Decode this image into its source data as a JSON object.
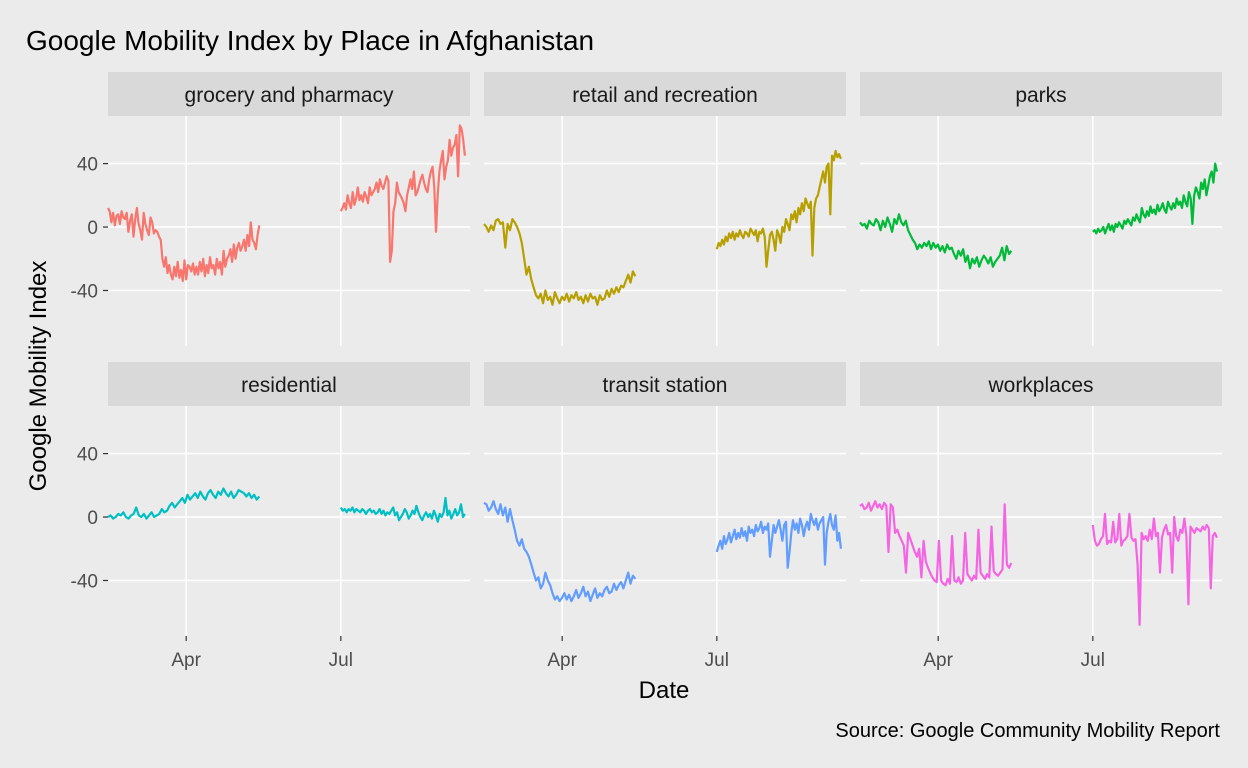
{
  "chart_data": {
    "type": "line",
    "title": "Google Mobility Index by Place in Afghanistan",
    "xlabel": "Date",
    "ylabel": "Google Mobility Index",
    "caption": "Source: Google Community Mobility Report",
    "x_ticks": [
      {
        "date": "2020-04-01",
        "label": "Apr"
      },
      {
        "date": "2020-07-01",
        "label": "Jul"
      }
    ],
    "y_ticks": [
      {
        "value": -40,
        "label": "-40"
      },
      {
        "value": 0,
        "label": "0"
      },
      {
        "value": 40,
        "label": "40"
      }
    ],
    "xlim": [
      "2020-02-15",
      "2020-09-15"
    ],
    "ylim": [
      -75,
      70
    ],
    "grid": true,
    "legend": "none",
    "date_ranges": [
      {
        "start": "2020-02-15",
        "end": "2020-05-14"
      },
      {
        "start": "2020-07-01",
        "end": "2020-09-12"
      }
    ],
    "panels": [
      {
        "title": "grocery and pharmacy",
        "color": "#F8766D",
        "segments": [
          [
            12,
            10,
            3,
            9,
            1,
            7,
            8,
            2,
            10,
            6,
            5,
            9,
            -3,
            4,
            8,
            -6,
            5,
            12,
            2,
            -2,
            -8,
            9,
            2,
            -2,
            -5,
            6,
            3,
            -4,
            -2,
            -3,
            -6,
            -8,
            -20,
            -25,
            -19,
            -29,
            -24,
            -30,
            -33,
            -25,
            -31,
            -22,
            -32,
            -27,
            -34,
            -21,
            -33,
            -24,
            -25,
            -28,
            -23,
            -30,
            -25,
            -30,
            -22,
            -28,
            -20,
            -31,
            -24,
            -29,
            -19,
            -26,
            -24,
            -30,
            -20,
            -26,
            -22,
            -30,
            -15,
            -25,
            -20,
            -18,
            -14,
            -22,
            -11,
            -20,
            -13,
            -10,
            -15,
            -12,
            -8,
            -15,
            -5,
            -12,
            3,
            -8,
            -10,
            -14,
            -5,
            1
          ],
          [
            10,
            12,
            15,
            11,
            20,
            15,
            12,
            22,
            14,
            18,
            25,
            17,
            20,
            16,
            22,
            19,
            15,
            25,
            20,
            22,
            24,
            28,
            22,
            30,
            26,
            24,
            28,
            32,
            29,
            -22,
            -15,
            10,
            15,
            28,
            22,
            20,
            18,
            15,
            10,
            20,
            25,
            30,
            24,
            35,
            20,
            22,
            26,
            30,
            33,
            28,
            24,
            22,
            30,
            35,
            38,
            25,
            -3,
            20,
            35,
            42,
            48,
            30,
            38,
            42,
            55,
            45,
            50,
            52,
            58,
            32,
            64,
            62,
            55,
            45
          ]
        ]
      },
      {
        "title": "retail and recreation",
        "color": "#B79F00",
        "segments": [
          [
            2,
            0,
            -3,
            1,
            -2,
            4,
            5,
            2,
            3,
            -13,
            2,
            -2,
            5,
            3,
            0,
            -4,
            -10,
            -20,
            -30,
            -25,
            -33,
            -38,
            -43,
            -45,
            -42,
            -48,
            -40,
            -46,
            -44,
            -49,
            -41,
            -45,
            -48,
            -44,
            -46,
            -42,
            -47,
            -43,
            -45,
            -41,
            -46,
            -44,
            -48,
            -43,
            -47,
            -42,
            -45,
            -44,
            -49,
            -43,
            -46,
            -45,
            -40,
            -44,
            -39,
            -42,
            -38,
            -41,
            -37,
            -38,
            -34,
            -30,
            -35,
            -28,
            -31
          ],
          [
            -14,
            -10,
            -12,
            -8,
            -11,
            -6,
            -9,
            -4,
            -7,
            -3,
            -8,
            -4,
            -6,
            -2,
            -5,
            -7,
            -3,
            -4,
            -6,
            -1,
            -3,
            -5,
            -2,
            -9,
            -3,
            -4,
            -1,
            -6,
            -25,
            -15,
            -5,
            -3,
            -8,
            -15,
            -2,
            -5,
            -10,
            0,
            -3,
            5,
            2,
            -2,
            8,
            5,
            10,
            3,
            12,
            8,
            15,
            10,
            18,
            15,
            12,
            16,
            -18,
            12,
            18,
            20,
            25,
            30,
            35,
            28,
            38,
            40,
            8,
            45,
            42,
            48,
            44,
            46,
            43
          ]
        ]
      },
      {
        "title": "parks",
        "color": "#00BA38",
        "segments": [
          [
            3,
            1,
            2,
            -1,
            4,
            2,
            1,
            5,
            3,
            -2,
            4,
            0,
            6,
            2,
            -3,
            5,
            2,
            8,
            3,
            1,
            4,
            -2,
            -5,
            -8,
            -10,
            -14,
            -11,
            -13,
            -10,
            -12,
            -9,
            -14,
            -10,
            -13,
            -11,
            -15,
            -12,
            -16,
            -11,
            -14,
            -13,
            -17,
            -20,
            -15,
            -18,
            -14,
            -22,
            -18,
            -26,
            -20,
            -23,
            -19,
            -25,
            -21,
            -18,
            -20,
            -23,
            -19,
            -25,
            -22,
            -20,
            -18,
            -13,
            -21,
            -12,
            -17,
            -15
          ],
          [
            -3,
            -2,
            -4,
            -1,
            -3,
            -2,
            0,
            -4,
            -1,
            2,
            -2,
            1,
            -3,
            2,
            0,
            3,
            1,
            -1,
            4,
            2,
            5,
            3,
            1,
            6,
            4,
            8,
            5,
            3,
            12,
            8,
            6,
            10,
            7,
            13,
            9,
            11,
            8,
            14,
            10,
            12,
            15,
            11,
            9,
            16,
            13,
            11,
            15,
            12,
            18,
            14,
            16,
            12,
            20,
            16,
            13,
            22,
            18,
            2,
            20,
            25,
            22,
            18,
            28,
            24,
            30,
            20,
            26,
            32,
            35,
            28,
            40,
            35
          ]
        ]
      },
      {
        "title": "residential",
        "color": "#00BFC4",
        "segments": [
          [
            0,
            1,
            -1,
            0,
            2,
            1,
            3,
            0,
            -1,
            1,
            2,
            6,
            1,
            0,
            2,
            -1,
            1,
            3,
            0,
            1,
            2,
            5,
            3,
            4,
            7,
            9,
            6,
            8,
            10,
            12,
            9,
            14,
            11,
            13,
            15,
            12,
            16,
            13,
            11,
            15,
            17,
            14,
            12,
            16,
            14,
            18,
            15,
            13,
            16,
            12,
            14,
            17,
            16,
            15,
            13,
            15,
            12,
            14,
            11,
            13
          ],
          [
            6,
            4,
            5,
            3,
            5,
            4,
            6,
            3,
            5,
            4,
            3,
            5,
            4,
            2,
            4,
            5,
            3,
            4,
            2,
            3,
            5,
            2,
            4,
            1,
            3,
            2,
            4,
            6,
            1,
            3,
            -2,
            0,
            2,
            5,
            3,
            -1,
            1,
            4,
            2,
            7,
            3,
            0,
            -2,
            1,
            3,
            0,
            2,
            -1,
            4,
            1,
            -3,
            2,
            0,
            3,
            12,
            1,
            4,
            -1,
            2,
            5,
            1,
            3,
            8,
            0,
            2
          ]
        ]
      },
      {
        "title": "transit station",
        "color": "#619CFF",
        "segments": [
          [
            9,
            8,
            4,
            6,
            10,
            5,
            2,
            8,
            1,
            6,
            -3,
            5,
            -2,
            -8,
            -15,
            -18,
            -14,
            -20,
            -22,
            -25,
            -30,
            -35,
            -40,
            -38,
            -45,
            -42,
            -35,
            -40,
            -43,
            -48,
            -52,
            -50,
            -53,
            -51,
            -48,
            -52,
            -49,
            -53,
            -50,
            -46,
            -51,
            -48,
            -44,
            -50,
            -47,
            -53,
            -49,
            -45,
            -51,
            -48,
            -50,
            -46,
            -44,
            -48,
            -47,
            -42,
            -46,
            -43,
            -41,
            -45,
            -40,
            -35,
            -42,
            -37,
            -39
          ],
          [
            -22,
            -18,
            -15,
            -20,
            -12,
            -17,
            -14,
            -10,
            -16,
            -12,
            -8,
            -14,
            -10,
            -13,
            -7,
            -12,
            -9,
            -15,
            -6,
            -10,
            -8,
            -12,
            -5,
            -9,
            -7,
            -3,
            -10,
            -6,
            -8,
            -4,
            -25,
            -15,
            -5,
            -10,
            -6,
            -2,
            -8,
            -15,
            -5,
            -3,
            -32,
            -22,
            -10,
            -2,
            -8,
            -4,
            -10,
            -1,
            -5,
            -12,
            -6,
            -3,
            -8,
            2,
            -2,
            -5,
            -1,
            -8,
            -4,
            -2,
            0,
            -30,
            -10,
            -3,
            2,
            -5,
            -8,
            1,
            -15,
            -10,
            -20
          ]
        ]
      },
      {
        "title": "workplaces",
        "color": "#F564E3",
        "segments": [
          [
            7,
            8,
            5,
            6,
            9,
            4,
            7,
            10,
            6,
            8,
            5,
            9,
            7,
            -22,
            8,
            6,
            -10,
            -8,
            -12,
            -15,
            -18,
            -35,
            -10,
            -14,
            -18,
            -22,
            -25,
            -20,
            -38,
            -15,
            -28,
            -32,
            -35,
            -38,
            -40,
            -41,
            -15,
            -40,
            -42,
            -43,
            -39,
            -42,
            -12,
            -40,
            -41,
            -38,
            -42,
            -40,
            -10,
            -36,
            -38,
            -40,
            -37,
            -39,
            -8,
            -35,
            -37,
            -39,
            -36,
            -38,
            -6,
            -34,
            -36,
            -37,
            -35,
            -33,
            8,
            -30,
            -32,
            -29
          ],
          [
            -5,
            -15,
            -18,
            -17,
            -14,
            -12,
            2,
            -17,
            -15,
            -16,
            -3,
            -16,
            -14,
            2,
            -18,
            -15,
            -14,
            -12,
            2,
            -13,
            -15,
            -14,
            -30,
            -68,
            -10,
            -14,
            -12,
            -15,
            -8,
            -14,
            -1,
            -12,
            -10,
            -35,
            -13,
            -8,
            -5,
            -11,
            -10,
            -35,
            0,
            -12,
            -15,
            -8,
            -10,
            -1,
            -12,
            -55,
            -6,
            -8,
            -10,
            -7,
            -8,
            -9,
            -6,
            -8,
            -5,
            -7,
            -45,
            -12,
            -10,
            -13
          ]
        ]
      }
    ]
  }
}
